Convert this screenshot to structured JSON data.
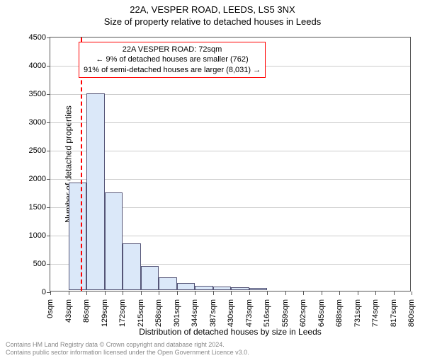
{
  "title_line1": "22A, VESPER ROAD, LEEDS, LS5 3NX",
  "title_line2": "Size of property relative to detached houses in Leeds",
  "ylabel": "Number of detached properties",
  "xlabel": "Distribution of detached houses by size in Leeds",
  "footer_line1": "Contains HM Land Registry data © Crown copyright and database right 2024.",
  "footer_line2": "Contains public sector information licensed under the Open Government Licence v3.0.",
  "info_box": {
    "line1": "22A VESPER ROAD: 72sqm",
    "line2": "← 9% of detached houses are smaller (762)",
    "line3": "91% of semi-detached houses are larger (8,031) →"
  },
  "chart": {
    "type": "histogram",
    "ylim": [
      0,
      4500
    ],
    "ytick_step": 500,
    "x_categories": [
      "0sqm",
      "43sqm",
      "86sqm",
      "129sqm",
      "172sqm",
      "215sqm",
      "258sqm",
      "301sqm",
      "344sqm",
      "387sqm",
      "430sqm",
      "473sqm",
      "516sqm",
      "559sqm",
      "602sqm",
      "645sqm",
      "688sqm",
      "731sqm",
      "774sqm",
      "817sqm",
      "860sqm"
    ],
    "values": [
      0,
      1900,
      3470,
      1730,
      830,
      430,
      220,
      130,
      80,
      60,
      45,
      35,
      0,
      0,
      0,
      0,
      0,
      0,
      0,
      0
    ],
    "bar_fill": "#dbe8f9",
    "bar_stroke": "#555577",
    "grid_color": "#cccccc",
    "background": "#ffffff",
    "marker_value_sqm": 72,
    "marker_color": "#ff0000",
    "info_box_border": "#ff0000",
    "title_fontsize": 13,
    "label_fontsize": 12,
    "tick_fontsize": 11
  }
}
